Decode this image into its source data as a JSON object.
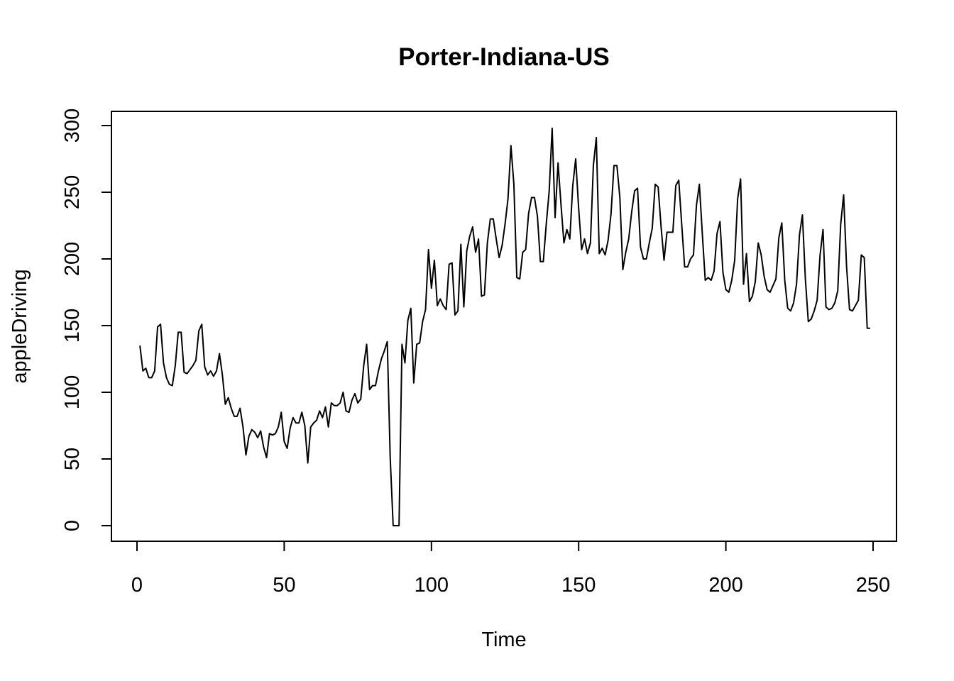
{
  "chart_data": {
    "type": "line",
    "title": "Porter-Indiana-US",
    "xlabel": "Time",
    "ylabel": "appleDriving",
    "xlim": [
      0,
      250
    ],
    "ylim": [
      0,
      300
    ],
    "x_ticks": [
      0,
      50,
      100,
      150,
      200,
      250
    ],
    "y_ticks": [
      0,
      50,
      100,
      150,
      200,
      250,
      300
    ],
    "grid": false,
    "legend": "none",
    "line_color": "#000000",
    "series": [
      {
        "values": [
          135,
          116,
          118,
          111,
          111,
          116,
          149,
          151,
          122,
          111,
          106,
          105,
          120,
          145,
          145,
          115,
          114,
          117,
          120,
          124,
          146,
          151,
          119,
          113,
          116,
          112,
          116,
          129,
          113,
          91,
          96,
          88,
          82,
          82,
          88,
          74,
          53,
          67,
          72,
          70,
          66,
          71,
          59,
          51,
          69,
          68,
          69,
          74,
          85,
          63,
          58,
          73,
          81,
          77,
          77,
          85,
          75,
          47,
          74,
          77,
          79,
          86,
          81,
          89,
          74,
          92,
          90,
          90,
          92,
          100,
          86,
          85,
          94,
          99,
          92,
          95,
          120,
          136,
          102,
          105,
          105,
          116,
          125,
          131,
          138,
          51,
          0,
          0,
          0,
          136,
          122,
          154,
          163,
          107,
          136,
          137,
          153,
          162,
          207,
          178,
          199,
          165,
          170,
          165,
          162,
          196,
          197,
          158,
          161,
          211,
          164,
          206,
          217,
          224,
          205,
          215,
          172,
          173,
          212,
          230,
          230,
          215,
          201,
          210,
          226,
          245,
          285,
          256,
          186,
          185,
          205,
          207,
          234,
          246,
          246,
          232,
          198,
          198,
          226,
          251,
          298,
          231,
          272,
          241,
          212,
          222,
          215,
          255,
          275,
          238,
          207,
          215,
          204,
          212,
          270,
          291,
          204,
          208,
          203,
          214,
          234,
          270,
          270,
          246,
          192,
          205,
          215,
          235,
          251,
          253,
          209,
          200,
          200,
          212,
          223,
          256,
          254,
          224,
          199,
          220,
          220,
          220,
          255,
          259,
          226,
          194,
          194,
          200,
          203,
          240,
          256,
          219,
          184,
          186,
          184,
          191,
          219,
          228,
          190,
          177,
          175,
          184,
          199,
          245,
          260,
          181,
          204,
          168,
          172,
          183,
          212,
          203,
          187,
          177,
          175,
          180,
          185,
          216,
          227,
          184,
          163,
          161,
          167,
          181,
          218,
          233,
          185,
          153,
          155,
          161,
          169,
          203,
          222,
          164,
          162,
          163,
          167,
          176,
          226,
          248,
          194,
          162,
          161,
          165,
          169,
          203,
          201,
          148,
          148
        ]
      }
    ]
  }
}
